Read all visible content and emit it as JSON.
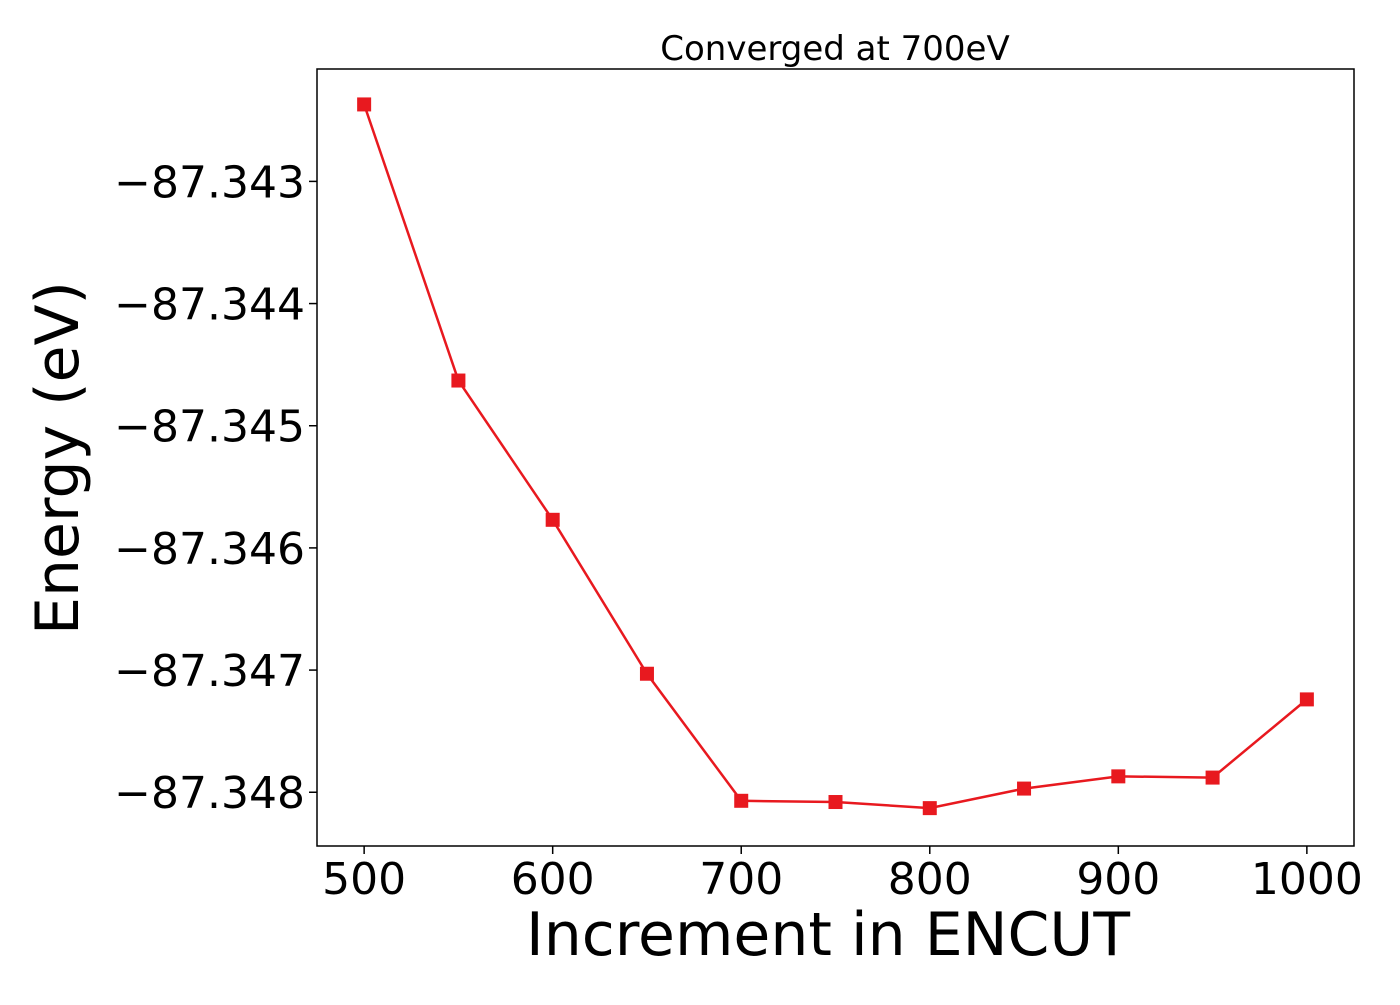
{
  "chart_data": {
    "type": "line",
    "title": "Converged at 700eV",
    "xlabel": "Increment in ENCUT",
    "ylabel": "Energy (eV)",
    "x": [
      500,
      550,
      600,
      650,
      700,
      750,
      800,
      850,
      900,
      950,
      1000
    ],
    "series": [
      {
        "values": [
          -87.34237,
          -87.34463,
          -87.34577,
          -87.34703,
          -87.34807,
          -87.34808,
          -87.34813,
          -87.34797,
          -87.34787,
          -87.34788,
          -87.34724
        ],
        "color": "#e8191f",
        "marker": "square"
      }
    ],
    "xticks": [
      500,
      600,
      700,
      800,
      900,
      1000
    ],
    "xtick_labels": [
      "500",
      "600",
      "700",
      "800",
      "900",
      "1000"
    ],
    "yticks": [
      -87.343,
      -87.344,
      -87.345,
      -87.346,
      -87.347,
      -87.348
    ],
    "ytick_labels": [
      "−87.343",
      "−87.344",
      "−87.345",
      "−87.346",
      "−87.347",
      "−87.348"
    ],
    "xlim": [
      475,
      1025
    ],
    "ylim": [
      -87.34844,
      -87.34208
    ],
    "grid": false,
    "legend": "none"
  }
}
